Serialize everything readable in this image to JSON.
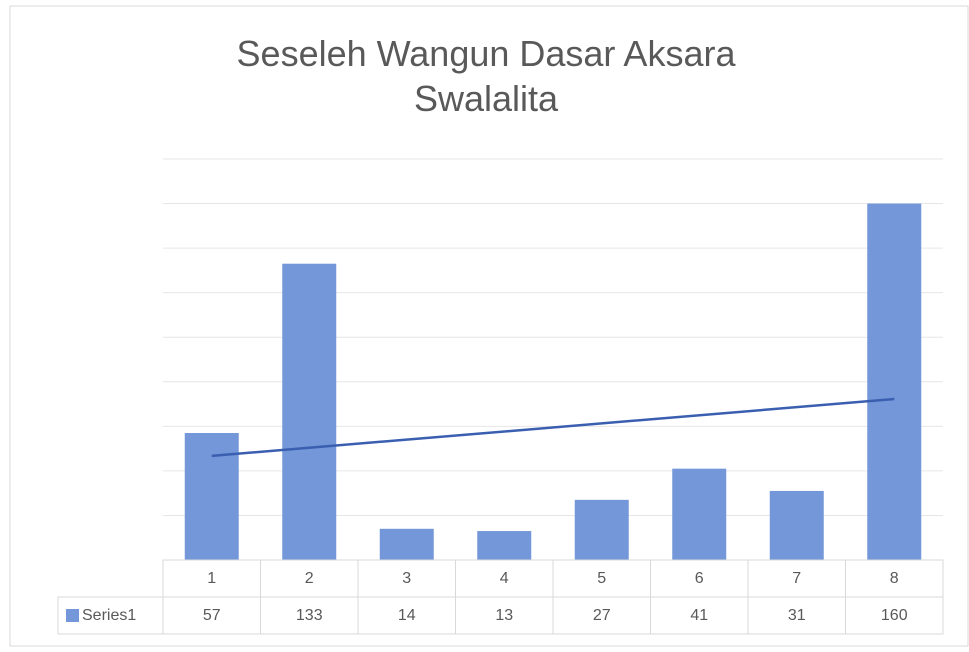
{
  "chart_data": {
    "type": "bar",
    "title": "Seseleh Wangun Dasar Aksara Swalalita",
    "categories": [
      "1",
      "2",
      "3",
      "4",
      "5",
      "6",
      "7",
      "8"
    ],
    "series": [
      {
        "name": "Series1",
        "color": "#7397d8",
        "values": [
          57,
          133,
          14,
          13,
          27,
          41,
          31,
          160
        ]
      }
    ],
    "ylim": [
      0,
      180
    ],
    "yticks": [
      0,
      20,
      40,
      60,
      80,
      100,
      120,
      140,
      160,
      180
    ],
    "grid": true,
    "trendline": "linear",
    "trendline_color": "#3a5fb0",
    "data_table": true
  }
}
